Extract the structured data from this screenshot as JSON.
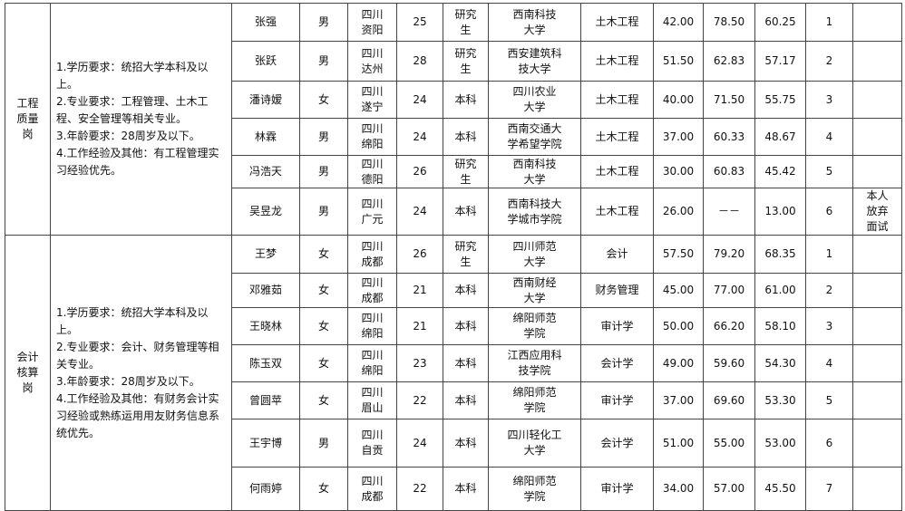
{
  "groups": [
    {
      "position": [
        "工程",
        "质量",
        "岗"
      ],
      "requirements": [
        "1.学历要求：统招大学本科及以上。",
        "2.专业要求：工程管理、土木工程、安全管理等相关专业。",
        "3.年龄要求：28周岁及以下。",
        "4.工作经验及其他：有工程管理实习经验优先。"
      ],
      "rows": [
        {
          "name": "张强",
          "gender": "男",
          "origin": [
            "四川",
            "资阳"
          ],
          "age": "25",
          "education": [
            "研究",
            "生"
          ],
          "school": [
            "西南科技",
            "大学"
          ],
          "major": "土木工程",
          "written": "42.00",
          "interview": "78.50",
          "total": "60.25",
          "rank": "1"
        },
        {
          "name": "张跃",
          "gender": "男",
          "origin": [
            "四川",
            "达州"
          ],
          "age": "28",
          "education": [
            "研究",
            "生"
          ],
          "school": [
            "西安建筑科",
            "技大学"
          ],
          "major": "土木工程",
          "written": "51.50",
          "interview": "62.83",
          "total": "57.17",
          "rank": "2"
        },
        {
          "name": "潘诗嫒",
          "gender": "女",
          "origin": [
            "四川",
            "遂宁"
          ],
          "age": "24",
          "education": [
            "本科"
          ],
          "school": [
            "四川农业",
            "大学"
          ],
          "major": "土木工程",
          "written": "40.00",
          "interview": "71.50",
          "total": "55.75",
          "rank": "3"
        },
        {
          "name": "林霖",
          "gender": "男",
          "origin": [
            "四川",
            "绵阳"
          ],
          "age": "24",
          "education": [
            "本科"
          ],
          "school": [
            "西南交通大",
            "学希望学院"
          ],
          "major": "土木工程",
          "written": "37.00",
          "interview": "60.33",
          "total": "48.67",
          "rank": "4"
        },
        {
          "name": "冯浩天",
          "gender": "男",
          "origin": [
            "四川",
            "德阳"
          ],
          "age": "26",
          "education": [
            "研究",
            "生"
          ],
          "school": [
            "西南科技",
            "大学"
          ],
          "major": "土木工程",
          "written": "30.00",
          "interview": "60.83",
          "total": "45.42",
          "rank": "5"
        },
        {
          "name": "吴昱龙",
          "gender": "男",
          "origin": [
            "四川",
            "广元"
          ],
          "age": "24",
          "education": [
            "本科"
          ],
          "school": [
            "西南科技大",
            "学城市学院"
          ],
          "major": "土木工程",
          "written": "26.00",
          "interview": "－－",
          "total": "13.00",
          "rank": "6",
          "note": [
            "本人",
            "放弃",
            "面试"
          ]
        }
      ]
    },
    {
      "position": [
        "会计",
        "核算",
        "岗"
      ],
      "requirements": [
        "1.学历要求：统招大学本科及以上。",
        "2.专业要求：会计、财务管理等相关专业。",
        "3.年龄要求：28周岁及以下。",
        "4.工作经验及其他：有财务会计实习经验或熟练运用用友财务信息系统优先。"
      ],
      "rows": [
        {
          "name": "王梦",
          "gender": "女",
          "origin": [
            "四川",
            "成都"
          ],
          "age": "26",
          "education": [
            "研究",
            "生"
          ],
          "school": [
            "四川师范",
            "大学"
          ],
          "major": "会计",
          "written": "57.50",
          "interview": "79.20",
          "total": "68.35",
          "rank": "1"
        },
        {
          "name": "邓雅茹",
          "gender": "女",
          "origin": [
            "四川",
            "成都"
          ],
          "age": "21",
          "education": [
            "本科"
          ],
          "school": [
            "西南财经",
            "大学"
          ],
          "major": "财务管理",
          "written": "45.00",
          "interview": "77.00",
          "total": "61.00",
          "rank": "2"
        },
        {
          "name": "王晓林",
          "gender": "女",
          "origin": [
            "四川",
            "绵阳"
          ],
          "age": "21",
          "education": [
            "本科"
          ],
          "school": [
            "绵阳师范",
            "学院"
          ],
          "major": "审计学",
          "written": "50.00",
          "interview": "66.20",
          "total": "58.10",
          "rank": "3"
        },
        {
          "name": "陈玉双",
          "gender": "女",
          "origin": [
            "四川",
            "绵阳"
          ],
          "age": "23",
          "education": [
            "本科"
          ],
          "school": [
            "江西应用科",
            "技学院"
          ],
          "major": "会计学",
          "written": "49.00",
          "interview": "59.60",
          "total": "54.30",
          "rank": "4"
        },
        {
          "name": "曾圆苹",
          "gender": "女",
          "origin": [
            "四川",
            "眉山"
          ],
          "age": "22",
          "education": [
            "本科"
          ],
          "school": [
            "绵阳师范",
            "学院"
          ],
          "major": "审计学",
          "written": "37.00",
          "interview": "69.60",
          "total": "53.30",
          "rank": "5"
        },
        {
          "name": "王宇博",
          "gender": "男",
          "origin": [
            "四川",
            "自贡"
          ],
          "age": "24",
          "education": [
            "本科"
          ],
          "school": [
            "四川轻化工",
            "大学"
          ],
          "major": "会计学",
          "written": "51.00",
          "interview": "55.00",
          "total": "53.00",
          "rank": "6"
        },
        {
          "name": "何雨婷",
          "gender": "女",
          "origin": [
            "四川",
            "成都"
          ],
          "age": "22",
          "education": [
            "本科"
          ],
          "school": [
            "绵阳师范",
            "学院"
          ],
          "major": "审计学",
          "written": "34.00",
          "interview": "57.00",
          "total": "45.50",
          "rank": "7"
        }
      ]
    }
  ]
}
